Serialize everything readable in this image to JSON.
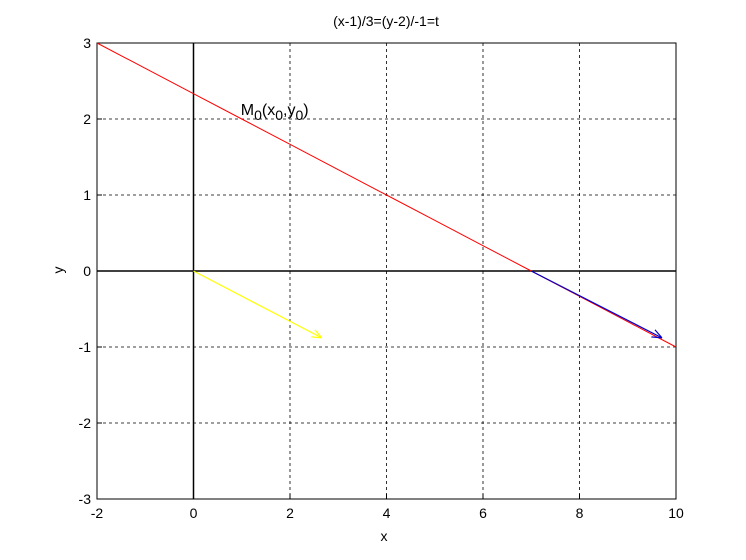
{
  "chart_data": {
    "type": "line",
    "title": "(x-1)/3=(y-2)/-1=t",
    "xlabel": "x",
    "ylabel": "y",
    "xlim": [
      -2,
      10
    ],
    "ylim": [
      -3,
      3
    ],
    "xticks": [
      -2,
      0,
      2,
      4,
      6,
      8,
      10
    ],
    "yticks": [
      -3,
      -2,
      -1,
      0,
      1,
      2,
      3
    ],
    "grid": true,
    "lines": [
      {
        "color": "#000000",
        "width": 1.5,
        "x": [
          -2,
          10
        ],
        "y": [
          0,
          0
        ]
      },
      {
        "color": "#000000",
        "width": 1.5,
        "x": [
          0,
          0
        ],
        "y": [
          -3,
          3
        ]
      },
      {
        "color": "#ff0000",
        "width": 1,
        "x": [
          -2,
          -1,
          0,
          1,
          2,
          3,
          4,
          5,
          6,
          7,
          8,
          9,
          10
        ],
        "y": [
          3,
          2.667,
          2.333,
          2,
          1.667,
          1.333,
          1,
          0.667,
          0.333,
          0,
          -0.333,
          -0.667,
          -1
        ]
      }
    ],
    "arrows": [
      {
        "color": "#ffff00",
        "x": [
          0,
          2.66
        ],
        "y": [
          0,
          -0.88
        ]
      },
      {
        "color": "#0000cc",
        "x": [
          7,
          9.71
        ],
        "y": [
          0,
          -0.88
        ]
      }
    ],
    "annotation": {
      "x": 0.98,
      "y": 2.05,
      "parts": [
        {
          "text": "M",
          "sub": false
        },
        {
          "text": "0",
          "sub": true
        },
        {
          "text": "(x",
          "sub": false
        },
        {
          "text": "0",
          "sub": true
        },
        {
          "text": ",y",
          "sub": false
        },
        {
          "text": "0",
          "sub": true
        },
        {
          "text": ")",
          "sub": false
        }
      ]
    }
  }
}
